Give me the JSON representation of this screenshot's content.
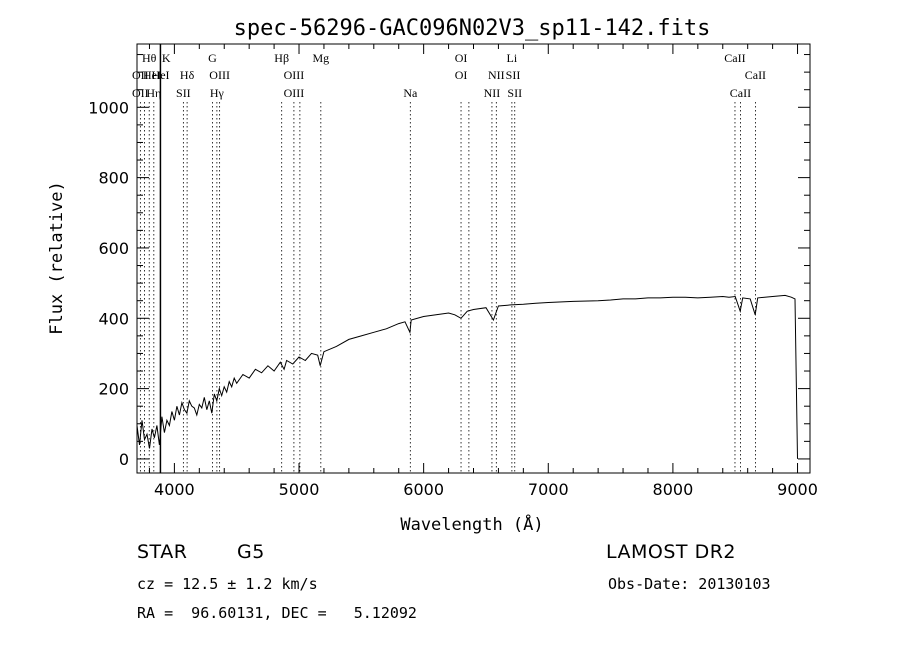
{
  "chart_data": {
    "type": "line",
    "title": "spec-56296-GAC096N02V3_sp11-142.fits",
    "xlabel": "Wavelength (Å)",
    "ylabel": "Flux (relative)",
    "xlim": [
      3700,
      9100
    ],
    "ylim": [
      -40,
      1180
    ],
    "xticks": [
      "4000",
      "5000",
      "6000",
      "7000",
      "8000",
      "9000"
    ],
    "yticks": [
      "0",
      "200",
      "400",
      "600",
      "800",
      "1000"
    ],
    "grid": false,
    "series": [
      {
        "points": [
          [
            3700,
            95
          ],
          [
            3720,
            40
          ],
          [
            3740,
            110
          ],
          [
            3760,
            55
          ],
          [
            3780,
            70
          ],
          [
            3800,
            30
          ],
          [
            3820,
            85
          ],
          [
            3840,
            60
          ],
          [
            3860,
            95
          ],
          [
            3880,
            40
          ],
          [
            3900,
            120
          ],
          [
            3920,
            75
          ],
          [
            3940,
            110
          ],
          [
            3960,
            95
          ],
          [
            3980,
            135
          ],
          [
            4000,
            110
          ],
          [
            4020,
            150
          ],
          [
            4040,
            125
          ],
          [
            4060,
            160
          ],
          [
            4080,
            140
          ],
          [
            4100,
            130
          ],
          [
            4120,
            165
          ],
          [
            4140,
            150
          ],
          [
            4160,
            145
          ],
          [
            4180,
            125
          ],
          [
            4200,
            155
          ],
          [
            4220,
            145
          ],
          [
            4240,
            175
          ],
          [
            4260,
            140
          ],
          [
            4280,
            165
          ],
          [
            4300,
            130
          ],
          [
            4320,
            185
          ],
          [
            4340,
            165
          ],
          [
            4360,
            200
          ],
          [
            4380,
            180
          ],
          [
            4400,
            205
          ],
          [
            4420,
            190
          ],
          [
            4440,
            220
          ],
          [
            4460,
            205
          ],
          [
            4480,
            230
          ],
          [
            4500,
            215
          ],
          [
            4550,
            240
          ],
          [
            4600,
            230
          ],
          [
            4650,
            255
          ],
          [
            4700,
            245
          ],
          [
            4750,
            265
          ],
          [
            4800,
            250
          ],
          [
            4850,
            275
          ],
          [
            4880,
            255
          ],
          [
            4900,
            280
          ],
          [
            4950,
            270
          ],
          [
            5000,
            290
          ],
          [
            5050,
            280
          ],
          [
            5100,
            300
          ],
          [
            5150,
            295
          ],
          [
            5170,
            265
          ],
          [
            5200,
            305
          ],
          [
            5300,
            320
          ],
          [
            5400,
            340
          ],
          [
            5500,
            350
          ],
          [
            5600,
            360
          ],
          [
            5700,
            370
          ],
          [
            5800,
            385
          ],
          [
            5850,
            390
          ],
          [
            5890,
            360
          ],
          [
            5900,
            395
          ],
          [
            6000,
            405
          ],
          [
            6100,
            410
          ],
          [
            6200,
            415
          ],
          [
            6250,
            410
          ],
          [
            6300,
            400
          ],
          [
            6350,
            420
          ],
          [
            6400,
            425
          ],
          [
            6500,
            430
          ],
          [
            6560,
            395
          ],
          [
            6600,
            435
          ],
          [
            6700,
            438
          ],
          [
            6800,
            440
          ],
          [
            6900,
            443
          ],
          [
            7000,
            445
          ],
          [
            7200,
            448
          ],
          [
            7400,
            450
          ],
          [
            7500,
            452
          ],
          [
            7600,
            455
          ],
          [
            7700,
            455
          ],
          [
            7800,
            458
          ],
          [
            7900,
            458
          ],
          [
            8000,
            460
          ],
          [
            8100,
            460
          ],
          [
            8200,
            458
          ],
          [
            8300,
            460
          ],
          [
            8400,
            462
          ],
          [
            8450,
            460
          ],
          [
            8500,
            462
          ],
          [
            8540,
            420
          ],
          [
            8560,
            458
          ],
          [
            8620,
            455
          ],
          [
            8660,
            410
          ],
          [
            8680,
            458
          ],
          [
            8800,
            462
          ],
          [
            8900,
            465
          ],
          [
            8950,
            460
          ],
          [
            8980,
            455
          ],
          [
            9000,
            0
          ]
        ]
      }
    ],
    "spectral_lines": [
      {
        "label": "Hθ",
        "wavelength": 3798,
        "row": 1
      },
      {
        "label": "OII",
        "wavelength": 3727,
        "row": 2
      },
      {
        "label": "OII",
        "wavelength": 3727,
        "row": 3
      },
      {
        "label": "HeI",
        "wavelength": 3820,
        "row": 2
      },
      {
        "label": "Hη",
        "wavelength": 3835,
        "row": 3
      },
      {
        "label": "K",
        "wavelength": 3934,
        "row": 1
      },
      {
        "label": "HeI",
        "wavelength": 3889,
        "row": 2
      },
      {
        "label": "Hδ",
        "wavelength": 4102,
        "row": 2
      },
      {
        "label": "SII",
        "wavelength": 4072,
        "row": 3
      },
      {
        "label": "G",
        "wavelength": 4305,
        "row": 1
      },
      {
        "label": "OIII",
        "wavelength": 4363,
        "row": 2
      },
      {
        "label": "Hγ",
        "wavelength": 4341,
        "row": 3
      },
      {
        "label": "Hβ",
        "wavelength": 4861,
        "row": 1
      },
      {
        "label": "OIII",
        "wavelength": 4959,
        "row": 2
      },
      {
        "label": "OIII",
        "wavelength": 4959,
        "row": 3
      },
      {
        "label": "Mg",
        "wavelength": 5175,
        "row": 1
      },
      {
        "label": "Na",
        "wavelength": 5893,
        "row": 3
      },
      {
        "label": "OI",
        "wavelength": 6300,
        "row": 1
      },
      {
        "label": "OI",
        "wavelength": 6300,
        "row": 2
      },
      {
        "label": "NII",
        "wavelength": 6583,
        "row": 2
      },
      {
        "label": "NII",
        "wavelength": 6548,
        "row": 3
      },
      {
        "label": "Li",
        "wavelength": 6708,
        "row": 1
      },
      {
        "label": "SII",
        "wavelength": 6717,
        "row": 2
      },
      {
        "label": "SII",
        "wavelength": 6731,
        "row": 3
      },
      {
        "label": "CaII",
        "wavelength": 8498,
        "row": 1
      },
      {
        "label": "CaII",
        "wavelength": 8662,
        "row": 2
      },
      {
        "label": "CaII",
        "wavelength": 8542,
        "row": 3
      }
    ],
    "line_markers": [
      3727,
      3760,
      3798,
      3835,
      3889,
      4072,
      4102,
      4305,
      4341,
      4363,
      4861,
      4959,
      5007,
      5175,
      5893,
      6300,
      6363,
      6548,
      6583,
      6708,
      6731,
      8498,
      8542,
      8662
    ],
    "vertical_marker": 3888
  },
  "info": {
    "class": "STAR",
    "subclass": "G5",
    "survey": "LAMOST DR2",
    "cz": "cz = 12.5 ± 1.2 km/s",
    "obs_date": "Obs-Date: 20130103",
    "radec": "RA =  96.60131, DEC =   5.12092"
  }
}
